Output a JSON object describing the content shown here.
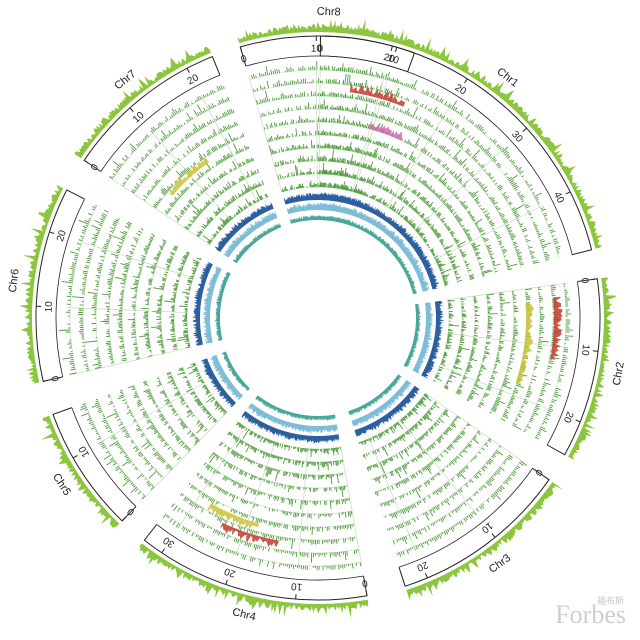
{
  "chromosomes": [
    {
      "name": "Chr1",
      "length": 48,
      "ticks": [
        0,
        10,
        20,
        30,
        40
      ]
    },
    {
      "name": "Chr2",
      "length": 25,
      "ticks": [
        0,
        10,
        20
      ]
    },
    {
      "name": "Chr3",
      "length": 23,
      "ticks": [
        0,
        10,
        20
      ]
    },
    {
      "name": "Chr4",
      "length": 33,
      "ticks": [
        0,
        10,
        20,
        30
      ]
    },
    {
      "name": "Chr5",
      "length": 16,
      "ticks": [
        0,
        10
      ]
    },
    {
      "name": "Chr6",
      "length": 26,
      "ticks": [
        0,
        10,
        20
      ]
    },
    {
      "name": "Chr7",
      "length": 24,
      "ticks": [
        0,
        10,
        20
      ]
    },
    {
      "name": "Chr8",
      "length": 23,
      "ticks": [
        0,
        10,
        20
      ]
    }
  ],
  "colors": {
    "outer_histogram": "#8cc63f",
    "track_bar": "#4f9a3c",
    "track_grid": "#b9d9b2",
    "heat_high": "#c0392b",
    "heat_mid": "#c9c237",
    "pink": "#d06ab0",
    "ring_dark": "#2d5f9e",
    "ring_light": "#7fbcd8",
    "ring_teal": "#4aa89a",
    "ideogram_stroke": "#222222"
  },
  "watermark": {
    "text": "Forbes",
    "subtext": "福布斯"
  }
}
